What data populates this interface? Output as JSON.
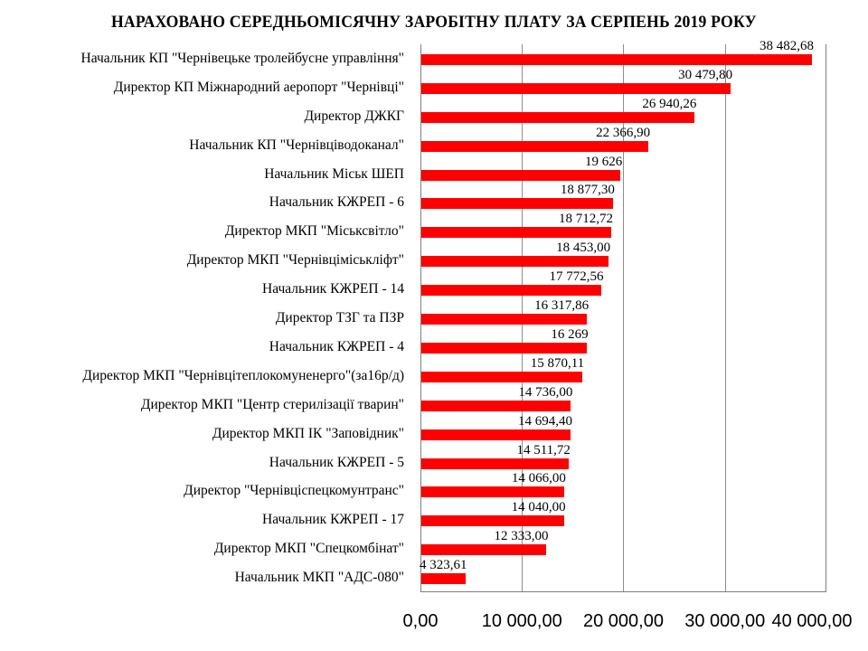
{
  "chart_data": {
    "type": "bar",
    "orientation": "horizontal",
    "title": "НАРАХОВАНО СЕРЕДНЬОМІСЯЧНУ  ЗАРОБІТНУ  ПЛАТУ ЗА СЕРПЕНЬ 2019 РОКУ",
    "xlabel": "",
    "ylabel": "",
    "xlim": [
      0,
      40000
    ],
    "grid": true,
    "legend": null,
    "bar_color": "#ff0000",
    "x_ticks": [
      0,
      10000,
      20000,
      30000,
      40000
    ],
    "x_tick_labels": [
      "0,00",
      "10 000,00",
      "20 000,00",
      "30 000,00",
      "40 000,00"
    ],
    "categories": [
      "Начальник КП \"Чернівецьке тролейбусне управління\"",
      "Директор КП Міжнародний аеропорт \"Чернівці\"",
      "Директор ДЖКГ",
      "Начальник КП \"Чернівціводоканал\"",
      "Начальник Міськ ШЕП",
      "Начальник КЖРЕП - 6",
      "Директор МКП \"Міськсвітло\"",
      "Директор МКП \"Чернівцімiськліфт\"",
      "Начальник КЖРЕП - 14",
      "Директор ТЗГ та ПЗР",
      "Начальник КЖРЕП - 4",
      "Директор МКП \"Чернівцітеплокомуненерго\"(за16р/д)",
      "Директор МКП \"Центр стерилізації тварин\"",
      "Директор МКП ІК \"Заповідник\"",
      "Начальник КЖРЕП - 5",
      "Директор \"Чернівціспецкомунтранс\"",
      "Начальник КЖРЕП - 17",
      "Директор МКП \"Спецкомбінат\"",
      "Начальник МКП \"АДС-080\""
    ],
    "values": [
      38482.68,
      30479.8,
      26940.26,
      22366.9,
      19626,
      18877.3,
      18712.72,
      18453.0,
      17772.56,
      16317.86,
      16269,
      15870.11,
      14736.0,
      14694.4,
      14511.72,
      14066.0,
      14040.0,
      12333.0,
      4323.61
    ],
    "value_labels": [
      "38 482,68",
      "30 479,80",
      "26 940,26",
      "22 366,90",
      "19 626",
      "18 877,30",
      "18 712,72",
      "18 453,00",
      "17 772,56",
      "16 317,86",
      "16 269",
      "15 870,11",
      "14 736,00",
      "14 694,40",
      "14 511,72",
      "14 066,00",
      "14 040,00",
      "12 333,00",
      "4 323,61"
    ]
  }
}
